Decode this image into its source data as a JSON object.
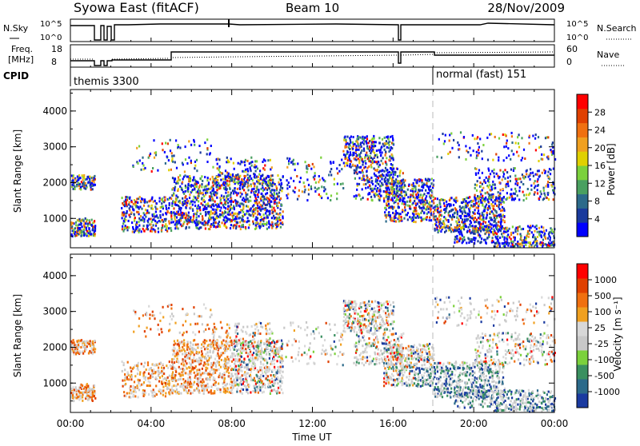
{
  "header": {
    "station": "Syowa East (fitACF)",
    "beam": "Beam 10",
    "date": "28/Nov/2009"
  },
  "nsky_panel": {
    "left_label": "N.Sky",
    "right_label": "N.Search",
    "ticks_left": [
      "10^5",
      "10^0"
    ],
    "ticks_right": [
      "10^5",
      "10^0"
    ]
  },
  "freq_panel": {
    "left_label_line1": "Freq.",
    "left_label_line2": "[MHz]",
    "right_label": "Nave",
    "ticks_left": [
      "18",
      "8"
    ],
    "ticks_right": [
      "60",
      "0"
    ]
  },
  "cpid_row": {
    "label": "CPID",
    "segments": [
      {
        "name": "themis 3300",
        "start_hour": 0
      },
      {
        "name": "normal (fast) 151",
        "start_hour": 18
      }
    ]
  },
  "colors": {
    "power_scale": [
      "#0000ff",
      "#1a3a9c",
      "#2c6a8a",
      "#4aa060",
      "#7bd13c",
      "#e0d000",
      "#f0a020",
      "#f07010",
      "#e04000",
      "#ff0000"
    ],
    "velocity_scale": [
      "#1a3aa0",
      "#2c6a8a",
      "#3a9060",
      "#7bd13c",
      "#c8c8c8",
      "#d8d8d8",
      "#f0a020",
      "#f07010",
      "#e04000",
      "#ff0000"
    ]
  },
  "chart_data": [
    {
      "type": "heatmap",
      "panel": "power",
      "ylabel": "Slant Range [km]",
      "ylim": [
        180,
        4600
      ],
      "yticks": [
        "1000",
        "2000",
        "3000",
        "4000"
      ],
      "xlim_hours": [
        0,
        24
      ],
      "colorbar_label": "Power [dB]",
      "colorbar_ticks": [
        "28",
        "24",
        "20",
        "16",
        "12",
        "8",
        "4"
      ],
      "colorbar_range": [
        0,
        30
      ]
    },
    {
      "type": "heatmap",
      "panel": "velocity",
      "ylabel": "Slant Range [km]",
      "ylim": [
        180,
        4600
      ],
      "yticks": [
        "1000",
        "2000",
        "3000",
        "4000"
      ],
      "xlabel": "Time UT",
      "xticks": [
        "00:00",
        "04:00",
        "08:00",
        "12:00",
        "16:00",
        "20:00",
        "00:00"
      ],
      "xlim_hours": [
        0,
        24
      ],
      "colorbar_label": "Velocity [m s⁻¹]",
      "colorbar_ticks": [
        "1000",
        "500",
        "100",
        "25",
        "-25",
        "-100",
        "-500",
        "-1000"
      ]
    }
  ]
}
